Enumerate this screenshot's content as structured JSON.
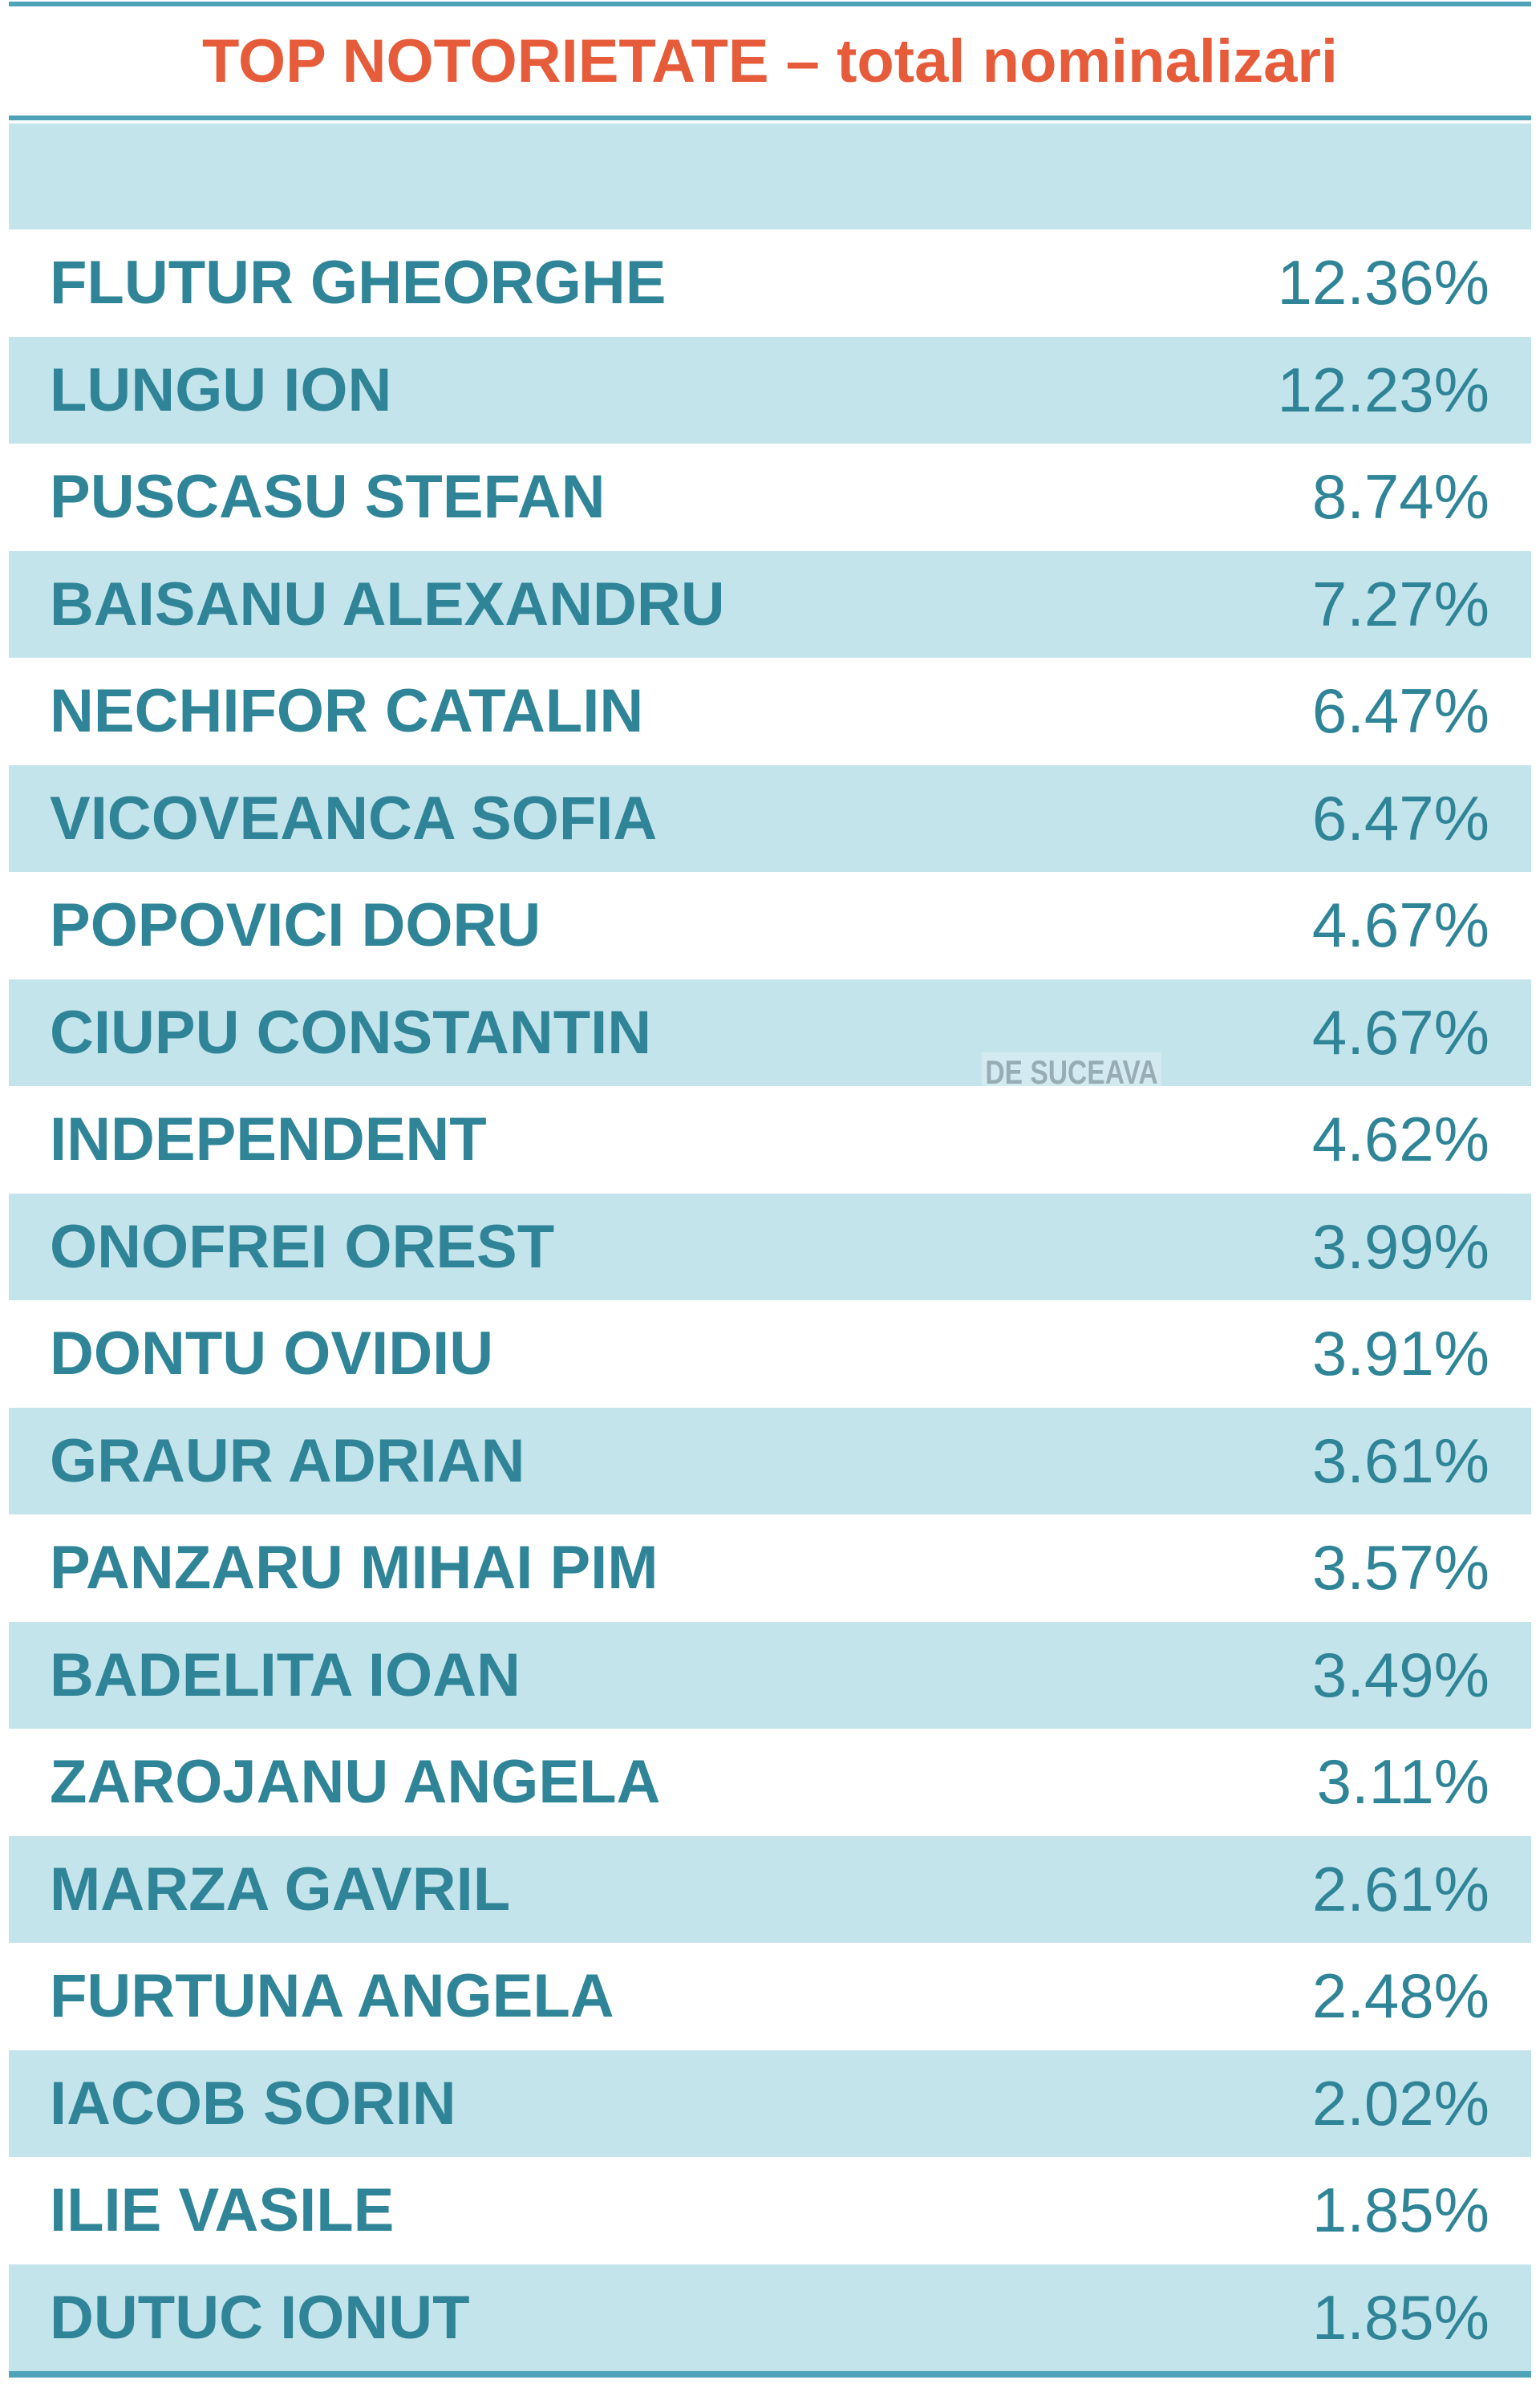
{
  "chart_data": {
    "type": "table",
    "title": "TOP NOTORIETATE – total nominalizari",
    "columns": [
      "",
      ""
    ],
    "rows": [
      {
        "name": "FLUTUR GHEORGHE",
        "value": "12.36%"
      },
      {
        "name": "LUNGU ION",
        "value": "12.23%"
      },
      {
        "name": "PUSCASU STEFAN",
        "value": "8.74%"
      },
      {
        "name": "BAISANU ALEXANDRU",
        "value": "7.27%"
      },
      {
        "name": "NECHIFOR CATALIN",
        "value": "6.47%"
      },
      {
        "name": "VICOVEANCA SOFIA",
        "value": "6.47%"
      },
      {
        "name": "POPOVICI DORU",
        "value": "4.67%"
      },
      {
        "name": "CIUPU CONSTANTIN",
        "value": "4.67%"
      },
      {
        "name": "INDEPENDENT",
        "value": "4.62%"
      },
      {
        "name": "ONOFREI OREST",
        "value": "3.99%"
      },
      {
        "name": "DONTU OVIDIU",
        "value": "3.91%"
      },
      {
        "name": "GRAUR ADRIAN",
        "value": "3.61%"
      },
      {
        "name": "PANZARU MIHAI PIM",
        "value": "3.57%"
      },
      {
        "name": "BADELITA IOAN",
        "value": "3.49%"
      },
      {
        "name": "ZAROJANU ANGELA",
        "value": "3.11%"
      },
      {
        "name": "MARZA GAVRIL",
        "value": "2.61%"
      },
      {
        "name": "FURTUNA ANGELA",
        "value": "2.48%"
      },
      {
        "name": "IACOB SORIN",
        "value": "2.02%"
      },
      {
        "name": "ILIE VASILE",
        "value": "1.85%"
      },
      {
        "name": "DUTUC IONUT",
        "value": "1.85%"
      }
    ]
  },
  "watermark": "DE SUCEAVA",
  "colors": {
    "title": "#e65b3a",
    "text": "#2f8597",
    "band": "#c4e4ec",
    "rule": "#4fa3b8"
  }
}
